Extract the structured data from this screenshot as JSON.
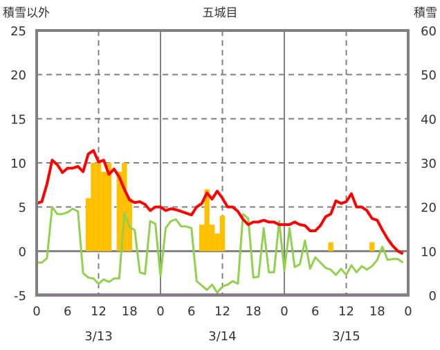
{
  "chart_data": {
    "type": "line",
    "title": "五城目",
    "ylabel_left": "積雪以外",
    "ylabel_right": "積雪",
    "ylim_left": [
      -5,
      25
    ],
    "ylim_right": [
      0,
      60
    ],
    "yticks_left": [
      25,
      20,
      15,
      10,
      5,
      0,
      -5
    ],
    "yticks_right": [
      60,
      50,
      40,
      30,
      20,
      10,
      0
    ],
    "xtick_labels": [
      "0",
      "6",
      "12",
      "18",
      "0",
      "6",
      "12",
      "18",
      "0",
      "6",
      "12",
      "18",
      "0"
    ],
    "date_labels": [
      "3/13",
      "3/14",
      "3/15"
    ],
    "hours": 72,
    "grid": true,
    "colors": {
      "temperature": "#ff0000",
      "green_series": "#92d050",
      "bars": "#ffc000",
      "snow": "#7030a0",
      "frame": "#808080"
    },
    "series": [
      {
        "name": "red-line",
        "axis": "left",
        "values": [
          5.4,
          5.6,
          7.6,
          10.3,
          9.8,
          8.9,
          9.4,
          9.4,
          9.6,
          9.0,
          11.0,
          11.4,
          10.1,
          10.3,
          8.7,
          9.3,
          8.4,
          7.0,
          5.8,
          5.5,
          5.6,
          5.3,
          4.6,
          5.0,
          5.0,
          4.6,
          4.8,
          4.7,
          4.5,
          4.3,
          4.1,
          5.0,
          5.4,
          6.6,
          5.9,
          6.8,
          6.0,
          5.0,
          5.0,
          4.5,
          3.6,
          3.0,
          3.3,
          3.3,
          3.5,
          3.3,
          3.3,
          3.0,
          3.0,
          3.0,
          3.3,
          3.0,
          2.9,
          2.3,
          2.3,
          2.9,
          3.9,
          4.2,
          5.7,
          5.4,
          5.6,
          6.5,
          5.0,
          5.0,
          4.6,
          3.7,
          3.5,
          2.4,
          1.4,
          0.6,
          0.0,
          -0.3
        ]
      },
      {
        "name": "green-line",
        "axis": "left",
        "values": [
          -1.3,
          -1.3,
          -0.8,
          5.0,
          4.2,
          4.2,
          4.4,
          4.8,
          4.5,
          -2.5,
          -3.0,
          -3.1,
          -3.7,
          -3.2,
          -3.5,
          -3.1,
          -3.1,
          4.3,
          2.7,
          2.4,
          -2.4,
          -2.6,
          3.4,
          3.1,
          -2.8,
          2.6,
          3.4,
          3.6,
          2.8,
          2.8,
          2.6,
          -3.4,
          -3.9,
          -4.4,
          -3.8,
          -4.7,
          -4.0,
          -3.8,
          -3.4,
          -3.7,
          4.2,
          3.7,
          -3.0,
          -2.9,
          2.6,
          -2.4,
          -2.4,
          3.4,
          -2.2,
          2.6,
          -1.8,
          -1.5,
          1.2,
          -2.0,
          -0.7,
          -1.3,
          -1.9,
          -2.1,
          -2.7,
          -2.0,
          -2.7,
          -1.6,
          -2.4,
          -1.7,
          -2.1,
          -1.7,
          -1.0,
          0.5,
          -1.0,
          -0.9,
          -0.9,
          -1.3
        ]
      },
      {
        "name": "bars",
        "axis": "left",
        "type": "bar",
        "points": [
          [
            10,
            6
          ],
          [
            11,
            10
          ],
          [
            12,
            10
          ],
          [
            13,
            9
          ],
          [
            14,
            10
          ],
          [
            16,
            9
          ],
          [
            17,
            10
          ],
          [
            18,
            6
          ],
          [
            32,
            3
          ],
          [
            33,
            7
          ],
          [
            34,
            3
          ],
          [
            35,
            2
          ],
          [
            36,
            4
          ],
          [
            57,
            1
          ],
          [
            65,
            1
          ]
        ]
      },
      {
        "name": "snow-depth",
        "axis": "right",
        "values_constant": 0
      }
    ]
  }
}
